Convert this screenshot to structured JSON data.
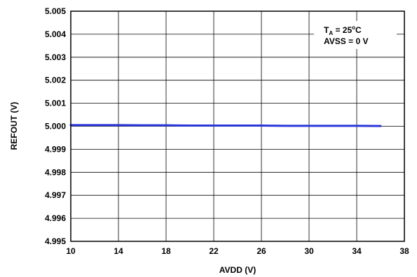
{
  "chart_data": {
    "type": "line",
    "title": "",
    "xlabel": "AVDD (V)",
    "ylabel": "REFOUT (V)",
    "xlim": [
      10,
      38
    ],
    "ylim": [
      4.995,
      5.005
    ],
    "xticks": [
      10,
      14,
      18,
      22,
      26,
      30,
      34,
      38
    ],
    "yticks": [
      4.995,
      4.996,
      4.997,
      4.998,
      4.999,
      5.0,
      5.001,
      5.002,
      5.003,
      5.004,
      5.005
    ],
    "xtick_labels": [
      "10",
      "14",
      "18",
      "22",
      "26",
      "30",
      "34",
      "38"
    ],
    "ytick_labels": [
      "4.995",
      "4.996",
      "4.997",
      "4.998",
      "4.999",
      "5.000",
      "5.001",
      "5.002",
      "5.003",
      "5.004",
      "5.005"
    ],
    "grid": true,
    "series": [
      {
        "color": "#2b36d9",
        "x": [
          10,
          12,
          14,
          16,
          18,
          20,
          22,
          24,
          26,
          28,
          30,
          32,
          34,
          36
        ],
        "y": [
          5.00005,
          5.00005,
          5.00005,
          5.00004,
          5.00004,
          5.00003,
          5.00003,
          5.00003,
          5.00003,
          5.00002,
          5.00002,
          5.00002,
          5.00002,
          5.00001
        ]
      }
    ],
    "annotation": {
      "line1_prefix": "T",
      "line1_sub": "A",
      "line1_mid": " = 25",
      "line1_sup": "o",
      "line1_suffix": "C",
      "line2": "AVSS = 0 V"
    }
  }
}
